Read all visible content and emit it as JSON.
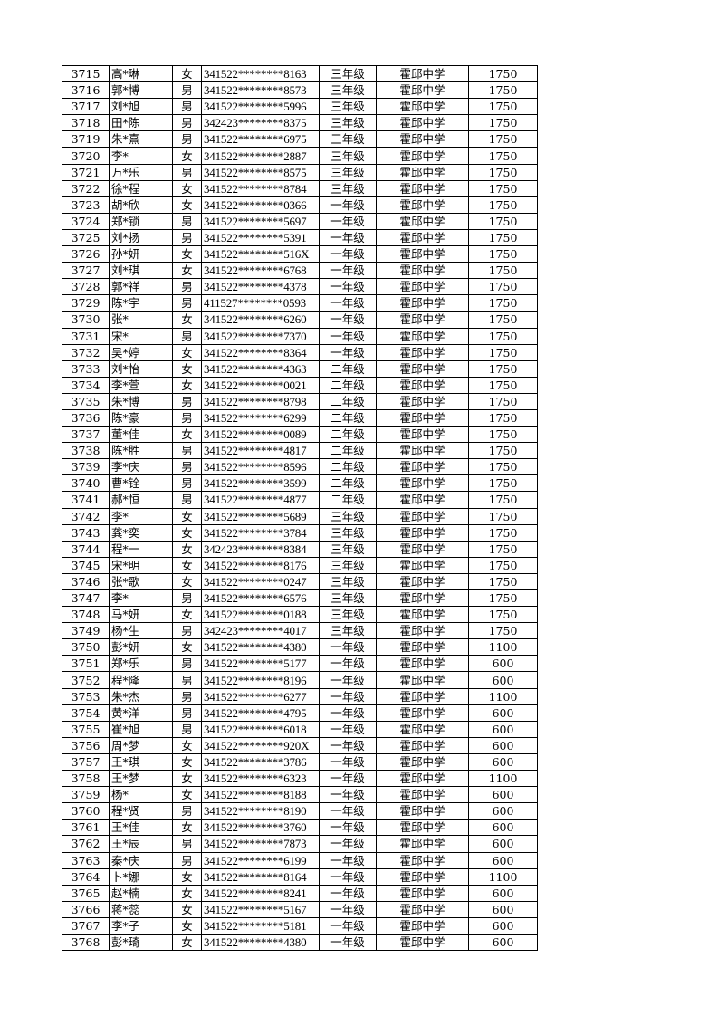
{
  "rows": [
    [
      "3715",
      "高*琳",
      "女",
      "341522********8163",
      "三年级",
      "霍邱中学",
      "1750"
    ],
    [
      "3716",
      "郭*博",
      "男",
      "341522********8573",
      "三年级",
      "霍邱中学",
      "1750"
    ],
    [
      "3717",
      "刘*旭",
      "男",
      "341522********5996",
      "三年级",
      "霍邱中学",
      "1750"
    ],
    [
      "3718",
      "田*陈",
      "男",
      "342423********8375",
      "三年级",
      "霍邱中学",
      "1750"
    ],
    [
      "3719",
      "朱*熹",
      "男",
      "341522********6975",
      "三年级",
      "霍邱中学",
      "1750"
    ],
    [
      "3720",
      "李*",
      "女",
      "341522********2887",
      "三年级",
      "霍邱中学",
      "1750"
    ],
    [
      "3721",
      "万*乐",
      "男",
      "341522********8575",
      "三年级",
      "霍邱中学",
      "1750"
    ],
    [
      "3722",
      "徐*程",
      "女",
      "341522********8784",
      "三年级",
      "霍邱中学",
      "1750"
    ],
    [
      "3723",
      "胡*欣",
      "女",
      "341522********0366",
      "一年级",
      "霍邱中学",
      "1750"
    ],
    [
      "3724",
      "郑*锁",
      "男",
      "341522********5697",
      "一年级",
      "霍邱中学",
      "1750"
    ],
    [
      "3725",
      "刘*扬",
      "男",
      "341522********5391",
      "一年级",
      "霍邱中学",
      "1750"
    ],
    [
      "3726",
      "孙*妍",
      "女",
      "341522********516X",
      "一年级",
      "霍邱中学",
      "1750"
    ],
    [
      "3727",
      "刘*琪",
      "女",
      "341522********6768",
      "一年级",
      "霍邱中学",
      "1750"
    ],
    [
      "3728",
      "郭*祥",
      "男",
      "341522********4378",
      "一年级",
      "霍邱中学",
      "1750"
    ],
    [
      "3729",
      "陈*宇",
      "男",
      "411527********0593",
      "一年级",
      "霍邱中学",
      "1750"
    ],
    [
      "3730",
      "张*",
      "女",
      "341522********6260",
      "一年级",
      "霍邱中学",
      "1750"
    ],
    [
      "3731",
      "宋*",
      "男",
      "341522********7370",
      "一年级",
      "霍邱中学",
      "1750"
    ],
    [
      "3732",
      "吴*婷",
      "女",
      "341522********8364",
      "一年级",
      "霍邱中学",
      "1750"
    ],
    [
      "3733",
      "刘*怡",
      "女",
      "341522********4363",
      "二年级",
      "霍邱中学",
      "1750"
    ],
    [
      "3734",
      "李*萱",
      "女",
      "341522********0021",
      "二年级",
      "霍邱中学",
      "1750"
    ],
    [
      "3735",
      "朱*博",
      "男",
      "341522********8798",
      "二年级",
      "霍邱中学",
      "1750"
    ],
    [
      "3736",
      "陈*豪",
      "男",
      "341522********6299",
      "二年级",
      "霍邱中学",
      "1750"
    ],
    [
      "3737",
      "董*佳",
      "女",
      "341522********0089",
      "二年级",
      "霍邱中学",
      "1750"
    ],
    [
      "3738",
      "陈*胜",
      "男",
      "341522********4817",
      "二年级",
      "霍邱中学",
      "1750"
    ],
    [
      "3739",
      "李*庆",
      "男",
      "341522********8596",
      "二年级",
      "霍邱中学",
      "1750"
    ],
    [
      "3740",
      "曹*铨",
      "男",
      "341522********3599",
      "二年级",
      "霍邱中学",
      "1750"
    ],
    [
      "3741",
      "郝*恒",
      "男",
      "341522********4877",
      "二年级",
      "霍邱中学",
      "1750"
    ],
    [
      "3742",
      "李*",
      "女",
      "341522********5689",
      "三年级",
      "霍邱中学",
      "1750"
    ],
    [
      "3743",
      "龚*奕",
      "女",
      "341522********3784",
      "三年级",
      "霍邱中学",
      "1750"
    ],
    [
      "3744",
      "程*一",
      "女",
      "342423********8384",
      "三年级",
      "霍邱中学",
      "1750"
    ],
    [
      "3745",
      "宋*明",
      "女",
      "341522********8176",
      "三年级",
      "霍邱中学",
      "1750"
    ],
    [
      "3746",
      "张*歌",
      "女",
      "341522********0247",
      "三年级",
      "霍邱中学",
      "1750"
    ],
    [
      "3747",
      "李*",
      "男",
      "341522********6576",
      "三年级",
      "霍邱中学",
      "1750"
    ],
    [
      "3748",
      "马*妍",
      "女",
      "341522********0188",
      "三年级",
      "霍邱中学",
      "1750"
    ],
    [
      "3749",
      "杨*生",
      "男",
      "342423********4017",
      "三年级",
      "霍邱中学",
      "1750"
    ],
    [
      "3750",
      "彭*妍",
      "女",
      "341522********4380",
      "一年级",
      "霍邱中学",
      "1100"
    ],
    [
      "3751",
      "郑*乐",
      "男",
      "341522********5177",
      "一年级",
      "霍邱中学",
      "600"
    ],
    [
      "3752",
      "程*隆",
      "男",
      "341522********8196",
      "一年级",
      "霍邱中学",
      "600"
    ],
    [
      "3753",
      "朱*杰",
      "男",
      "341522********6277",
      "一年级",
      "霍邱中学",
      "1100"
    ],
    [
      "3754",
      "黄*洋",
      "男",
      "341522********4795",
      "一年级",
      "霍邱中学",
      "600"
    ],
    [
      "3755",
      "崔*旭",
      "男",
      "341522********6018",
      "一年级",
      "霍邱中学",
      "600"
    ],
    [
      "3756",
      "周*梦",
      "女",
      "341522********920X",
      "一年级",
      "霍邱中学",
      "600"
    ],
    [
      "3757",
      "王*琪",
      "女",
      "341522********3786",
      "一年级",
      "霍邱中学",
      "600"
    ],
    [
      "3758",
      "王*梦",
      "女",
      "341522********6323",
      "一年级",
      "霍邱中学",
      "1100"
    ],
    [
      "3759",
      "杨*",
      "女",
      "341522********8188",
      "一年级",
      "霍邱中学",
      "600"
    ],
    [
      "3760",
      "程*贤",
      "男",
      "341522********8190",
      "一年级",
      "霍邱中学",
      "600"
    ],
    [
      "3761",
      "王*佳",
      "女",
      "341522********3760",
      "一年级",
      "霍邱中学",
      "600"
    ],
    [
      "3762",
      "王*辰",
      "男",
      "341522********7873",
      "一年级",
      "霍邱中学",
      "600"
    ],
    [
      "3763",
      "秦*庆",
      "男",
      "341522********6199",
      "一年级",
      "霍邱中学",
      "600"
    ],
    [
      "3764",
      "卜*娜",
      "女",
      "341522********8164",
      "一年级",
      "霍邱中学",
      "1100"
    ],
    [
      "3765",
      "赵*楠",
      "女",
      "341522********8241",
      "一年级",
      "霍邱中学",
      "600"
    ],
    [
      "3766",
      "蒋*蕊",
      "女",
      "341522********5167",
      "一年级",
      "霍邱中学",
      "600"
    ],
    [
      "3767",
      "李*子",
      "女",
      "341522********5181",
      "一年级",
      "霍邱中学",
      "600"
    ],
    [
      "3768",
      "彭*琦",
      "女",
      "341522********4380",
      "一年级",
      "霍邱中学",
      "600"
    ]
  ]
}
